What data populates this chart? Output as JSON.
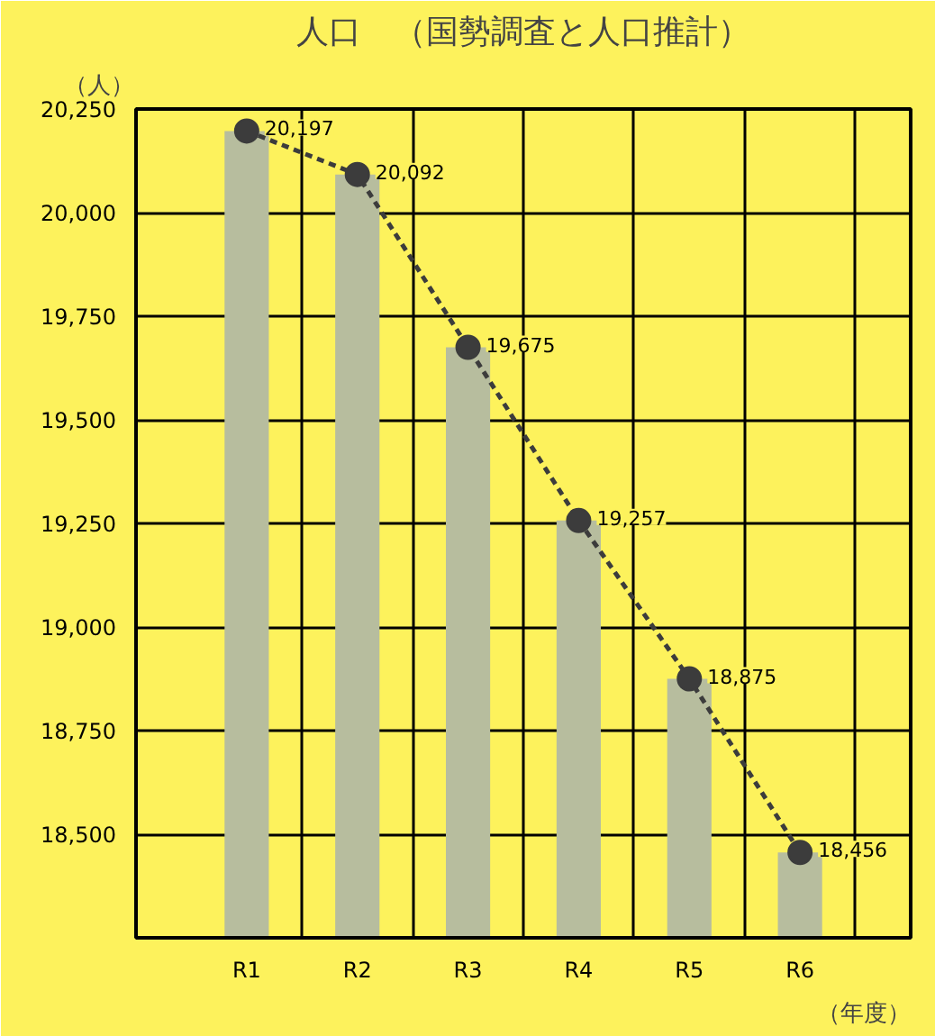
{
  "chart_data": {
    "type": "bar",
    "title": "人口　（国勢調査と人口推計）",
    "ylabel": "（人）",
    "xlabel": "（年度）",
    "categories": [
      "R1",
      "R2",
      "R3",
      "R4",
      "R5",
      "R6"
    ],
    "series": [
      {
        "color": "#b7bd9e",
        "values": [
          20197,
          20092,
          19675,
          19257,
          18875,
          18456
        ]
      },
      {
        "type": "line",
        "color": "#3c3c3c",
        "values": [
          20197,
          20092,
          19675,
          19257,
          18875,
          18456
        ],
        "marker": "circle",
        "line_style": "dashed",
        "value_labels": [
          "20,197",
          "20,092",
          "19,675",
          "19,257",
          "18,875",
          "18,456"
        ]
      }
    ],
    "ylim": [
      18250,
      20250
    ],
    "yticks": [
      {
        "value": 18500,
        "label": "18,500"
      },
      {
        "value": 18750,
        "label": "18,750"
      },
      {
        "value": 19000,
        "label": "19,000"
      },
      {
        "value": 19250,
        "label": "19,250"
      },
      {
        "value": 19500,
        "label": "19,500"
      },
      {
        "value": 19750,
        "label": "19,750"
      },
      {
        "value": 20000,
        "label": "20,000"
      },
      {
        "value": 20250,
        "label": "20,250"
      }
    ],
    "grid": true
  }
}
